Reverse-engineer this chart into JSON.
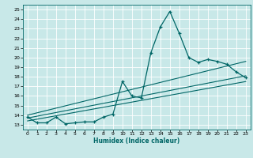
{
  "xlabel": "Humidex (Indice chaleur)",
  "bg_color": "#c8e8e8",
  "line_color": "#006666",
  "grid_color": "#b0d8d8",
  "xlim": [
    -0.5,
    23.5
  ],
  "ylim": [
    12.5,
    25.5
  ],
  "xticks": [
    0,
    1,
    2,
    3,
    4,
    5,
    6,
    7,
    8,
    9,
    10,
    11,
    12,
    13,
    14,
    15,
    16,
    17,
    18,
    19,
    20,
    21,
    22,
    23
  ],
  "yticks": [
    13,
    14,
    15,
    16,
    17,
    18,
    19,
    20,
    21,
    22,
    23,
    24,
    25
  ],
  "main_x": [
    0,
    1,
    2,
    3,
    4,
    5,
    6,
    7,
    8,
    9,
    10,
    11,
    12,
    13,
    14,
    15,
    16,
    17,
    18,
    19,
    20,
    21,
    22,
    23
  ],
  "main_y": [
    13.8,
    13.2,
    13.2,
    13.8,
    13.1,
    13.2,
    13.3,
    13.3,
    13.8,
    14.1,
    17.5,
    16.0,
    15.8,
    20.5,
    23.2,
    24.8,
    22.5,
    20.0,
    19.5,
    19.8,
    19.6,
    19.3,
    18.5,
    17.9
  ],
  "trend1_x": [
    0,
    23
  ],
  "trend1_y": [
    14.0,
    19.6
  ],
  "trend2_x": [
    0,
    23
  ],
  "trend2_y": [
    13.7,
    18.1
  ],
  "trend3_x": [
    0,
    23
  ],
  "trend3_y": [
    13.4,
    17.5
  ]
}
